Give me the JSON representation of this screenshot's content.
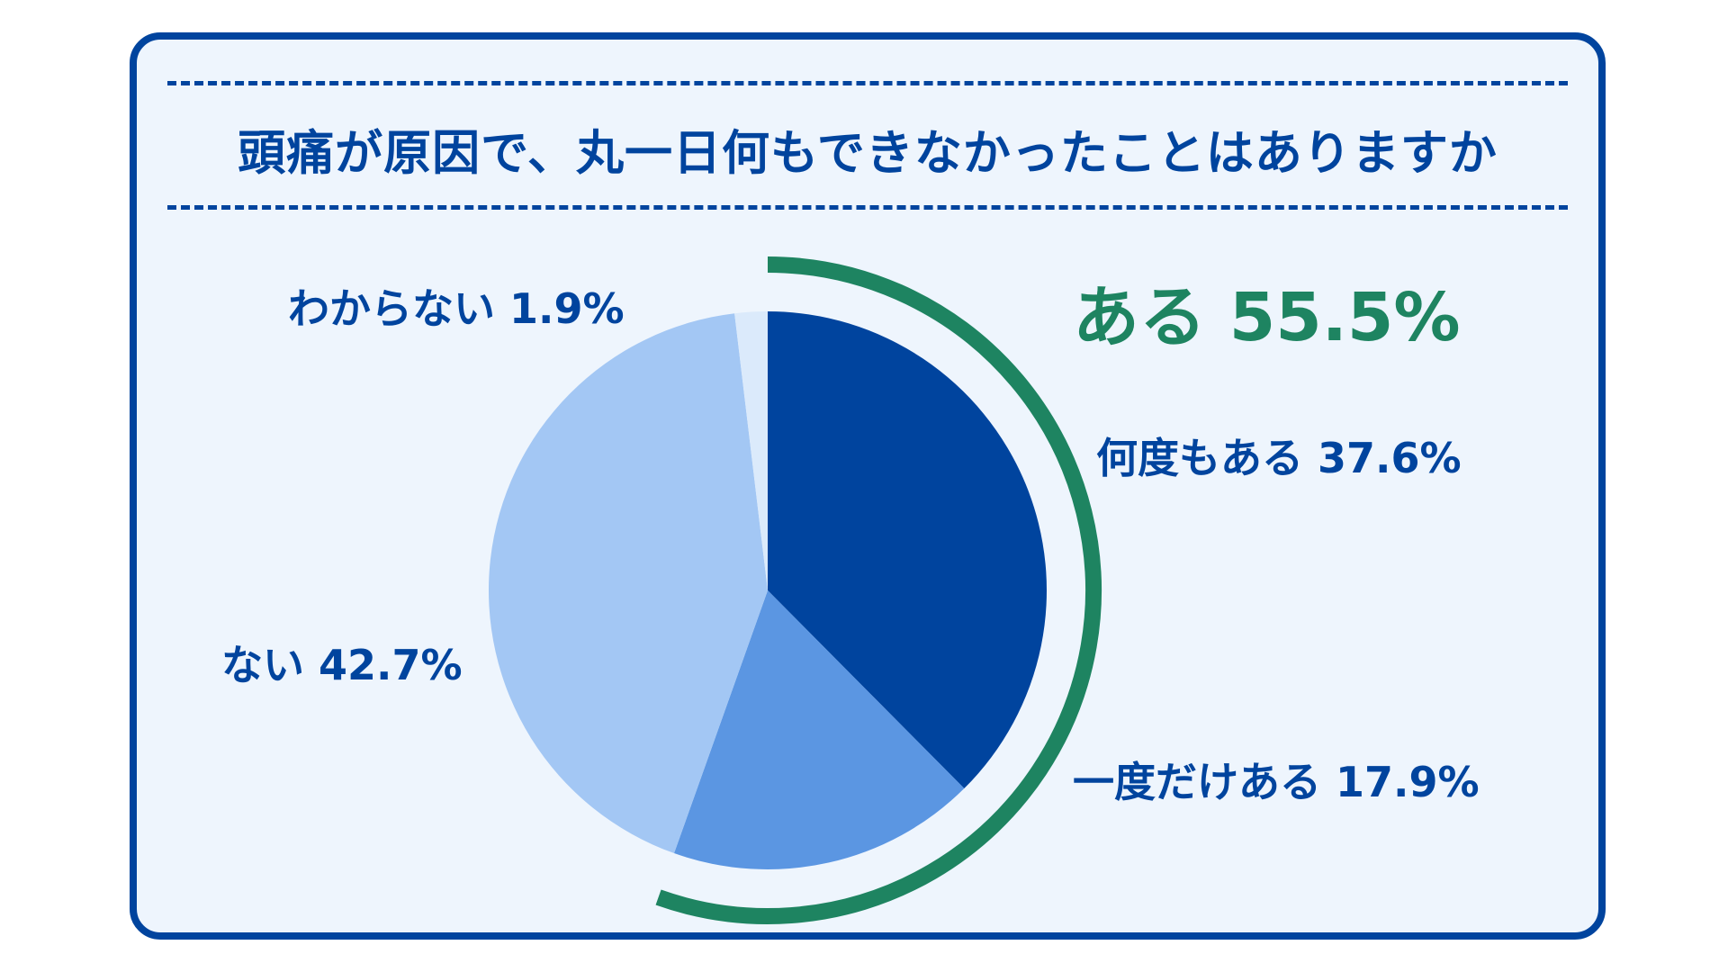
{
  "title": "頭痛が原因で、丸一日何もできなかったことはありますか",
  "colors": {
    "frame": "#00449e",
    "background": "#eef5fd",
    "accent_green": "#1e8461",
    "text": "#00449e"
  },
  "group_label": {
    "label": "ある",
    "value_text": "55.5%",
    "value": 55.5
  },
  "chart_data": {
    "type": "pie",
    "start": "12 o'clock",
    "direction": "clockwise",
    "slices": [
      {
        "label": "何度もある",
        "value": 37.6,
        "value_text": "37.6%",
        "color": "#00449e"
      },
      {
        "label": "一度だけある",
        "value": 17.9,
        "value_text": "17.9%",
        "color": "#5b96e2"
      },
      {
        "label": "ない",
        "value": 42.7,
        "value_text": "42.7%",
        "color": "#a3c7f4"
      },
      {
        "label": "わからない",
        "value": 1.9,
        "value_text": "1.9%",
        "color": "#dbeafb"
      }
    ],
    "group_bracket": {
      "label": "ある",
      "value": 55.5,
      "includes": [
        "何度もある",
        "一度だけある"
      ],
      "color": "#1e8461"
    }
  }
}
